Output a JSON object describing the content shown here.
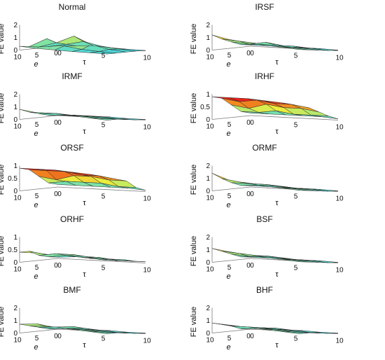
{
  "figure": {
    "z_axis_label": "FE value",
    "x_axis_label": "e",
    "y_axis_label": "τ"
  },
  "colors": {
    "axis": "#7a7a7a",
    "mesh_edge": "#2a2a2a",
    "low": "#3fd4e6",
    "high": "#e8241c"
  },
  "chart_data": [
    {
      "type": "surface",
      "title": "Normal",
      "zlim": [
        0,
        2
      ],
      "z_ticks": [
        "0",
        "1",
        "2"
      ],
      "e_ticks": [
        "10",
        "5",
        "0"
      ],
      "tau_ticks": [
        "0",
        "5",
        "10"
      ],
      "e_range": [
        0,
        10
      ],
      "tau_range": [
        0,
        10
      ],
      "z": [
        [
          0.3,
          0.2,
          0.15,
          0.1,
          0.08,
          0.05
        ],
        [
          0.2,
          0.9,
          0.4,
          0.2,
          0.1,
          0.05
        ],
        [
          0.1,
          0.5,
          1.1,
          0.5,
          0.2,
          0.05
        ],
        [
          0.05,
          0.3,
          0.6,
          0.3,
          0.15,
          0.05
        ],
        [
          0.05,
          0.1,
          0.2,
          0.1,
          0.05,
          0.02
        ]
      ]
    },
    {
      "type": "surface",
      "title": "IRSF",
      "zlim": [
        0,
        2
      ],
      "z_ticks": [
        "0",
        "1",
        "2"
      ],
      "e_ticks": [
        "10",
        "5",
        "0"
      ],
      "tau_ticks": [
        "0",
        "5",
        "10"
      ],
      "e_range": [
        0,
        10
      ],
      "tau_range": [
        0,
        10
      ],
      "z": [
        [
          1.2,
          0.9,
          0.7,
          0.6,
          0.5,
          0.4
        ],
        [
          0.8,
          0.7,
          0.6,
          0.5,
          0.4,
          0.3
        ],
        [
          0.5,
          0.4,
          0.6,
          0.4,
          0.3,
          0.2
        ],
        [
          0.2,
          0.3,
          0.3,
          0.3,
          0.2,
          0.1
        ],
        [
          0.1,
          0.1,
          0.1,
          0.1,
          0.1,
          0.05
        ]
      ]
    },
    {
      "type": "surface",
      "title": "IRMF",
      "zlim": [
        0,
        2
      ],
      "z_ticks": [
        "0",
        "1",
        "2"
      ],
      "e_ticks": [
        "10",
        "5",
        "0"
      ],
      "tau_ticks": [
        "0",
        "5",
        "10"
      ],
      "e_range": [
        0,
        10
      ],
      "tau_range": [
        0,
        10
      ],
      "z": [
        [
          0.8,
          0.6,
          0.5,
          0.5,
          0.4,
          0.3
        ],
        [
          0.5,
          0.5,
          0.4,
          0.4,
          0.3,
          0.3
        ],
        [
          0.3,
          0.4,
          0.3,
          0.3,
          0.2,
          0.2
        ],
        [
          0.1,
          0.2,
          0.2,
          0.2,
          0.1,
          0.1
        ],
        [
          0.05,
          0.1,
          0.1,
          0.1,
          0.05,
          0.05
        ]
      ]
    },
    {
      "type": "surface",
      "title": "IRHF",
      "zlim": [
        0,
        1
      ],
      "z_ticks": [
        "0",
        "0.5",
        "1"
      ],
      "e_ticks": [
        "10",
        "5",
        "0"
      ],
      "tau_ticks": [
        "0",
        "5",
        "10"
      ],
      "e_range": [
        0,
        10
      ],
      "tau_range": [
        0,
        10
      ],
      "z": [
        [
          0.9,
          0.9,
          0.9,
          0.85,
          0.8,
          0.7
        ],
        [
          0.8,
          0.7,
          0.8,
          0.7,
          0.7,
          0.6
        ],
        [
          0.5,
          0.4,
          0.6,
          0.5,
          0.5,
          0.4
        ],
        [
          0.2,
          0.2,
          0.3,
          0.2,
          0.2,
          0.2
        ],
        [
          0.1,
          0.1,
          0.1,
          0.1,
          0.1,
          0.05
        ]
      ]
    },
    {
      "type": "surface",
      "title": "ORSF",
      "zlim": [
        0,
        1
      ],
      "z_ticks": [
        "0",
        "0.5",
        "1"
      ],
      "e_ticks": [
        "10",
        "5",
        "0"
      ],
      "tau_ticks": [
        "0",
        "5",
        "10"
      ],
      "e_range": [
        0,
        10
      ],
      "tau_range": [
        0,
        10
      ],
      "z": [
        [
          0.9,
          0.9,
          0.9,
          0.85,
          0.8,
          0.7
        ],
        [
          0.8,
          0.8,
          0.8,
          0.7,
          0.7,
          0.6
        ],
        [
          0.5,
          0.4,
          0.6,
          0.6,
          0.5,
          0.5
        ],
        [
          0.2,
          0.3,
          0.3,
          0.3,
          0.2,
          0.2
        ],
        [
          0.1,
          0.1,
          0.1,
          0.1,
          0.1,
          0.05
        ]
      ]
    },
    {
      "type": "surface",
      "title": "ORMF",
      "zlim": [
        0,
        2
      ],
      "z_ticks": [
        "0",
        "1",
        "2"
      ],
      "e_ticks": [
        "10",
        "5",
        "0"
      ],
      "tau_ticks": [
        "0",
        "5",
        "10"
      ],
      "e_range": [
        0,
        10
      ],
      "tau_range": [
        0,
        10
      ],
      "z": [
        [
          1.4,
          0.9,
          0.7,
          0.6,
          0.5,
          0.4
        ],
        [
          0.9,
          0.7,
          0.6,
          0.5,
          0.4,
          0.3
        ],
        [
          0.5,
          0.5,
          0.5,
          0.4,
          0.3,
          0.2
        ],
        [
          0.2,
          0.3,
          0.3,
          0.2,
          0.2,
          0.1
        ],
        [
          0.1,
          0.1,
          0.1,
          0.1,
          0.1,
          0.05
        ]
      ]
    },
    {
      "type": "surface",
      "title": "ORHF",
      "zlim": [
        0,
        1
      ],
      "z_ticks": [
        "0",
        "0.5",
        "1"
      ],
      "e_ticks": [
        "10",
        "5",
        "0"
      ],
      "tau_ticks": [
        "0",
        "5",
        "10"
      ],
      "e_range": [
        0,
        10
      ],
      "tau_range": [
        0,
        10
      ],
      "z": [
        [
          0.4,
          0.4,
          0.35,
          0.35,
          0.3,
          0.3
        ],
        [
          0.4,
          0.3,
          0.3,
          0.3,
          0.3,
          0.2
        ],
        [
          0.2,
          0.3,
          0.3,
          0.2,
          0.2,
          0.2
        ],
        [
          0.1,
          0.2,
          0.2,
          0.1,
          0.1,
          0.1
        ],
        [
          0.05,
          0.1,
          0.1,
          0.05,
          0.05,
          0.05
        ]
      ]
    },
    {
      "type": "surface",
      "title": "BSF",
      "zlim": [
        0,
        2
      ],
      "z_ticks": [
        "0",
        "1",
        "2"
      ],
      "e_ticks": [
        "10",
        "5",
        "0"
      ],
      "tau_ticks": [
        "0",
        "5",
        "10"
      ],
      "e_range": [
        0,
        10
      ],
      "tau_range": [
        0,
        10
      ],
      "z": [
        [
          1.1,
          0.9,
          0.7,
          0.6,
          0.5,
          0.4
        ],
        [
          0.8,
          0.7,
          0.6,
          0.5,
          0.4,
          0.3
        ],
        [
          0.5,
          0.4,
          0.5,
          0.4,
          0.3,
          0.2
        ],
        [
          0.2,
          0.3,
          0.3,
          0.2,
          0.2,
          0.1
        ],
        [
          0.1,
          0.1,
          0.1,
          0.1,
          0.1,
          0.05
        ]
      ]
    },
    {
      "type": "surface",
      "title": "BMF",
      "zlim": [
        0,
        2
      ],
      "z_ticks": [
        "0",
        "1",
        "2"
      ],
      "e_ticks": [
        "10",
        "5",
        "0"
      ],
      "tau_ticks": [
        "0",
        "5",
        "10"
      ],
      "e_range": [
        0,
        10
      ],
      "tau_range": [
        0,
        10
      ],
      "z": [
        [
          0.7,
          0.8,
          0.6,
          0.5,
          0.4,
          0.3
        ],
        [
          0.5,
          0.5,
          0.5,
          0.4,
          0.3,
          0.3
        ],
        [
          0.3,
          0.4,
          0.5,
          0.3,
          0.2,
          0.2
        ],
        [
          0.1,
          0.2,
          0.3,
          0.2,
          0.1,
          0.1
        ],
        [
          0.05,
          0.1,
          0.1,
          0.1,
          0.05,
          0.05
        ]
      ]
    },
    {
      "type": "surface",
      "title": "BHF",
      "zlim": [
        0,
        2
      ],
      "z_ticks": [
        "0",
        "1",
        "2"
      ],
      "e_ticks": [
        "10",
        "5",
        "0"
      ],
      "tau_ticks": [
        "0",
        "5",
        "10"
      ],
      "e_range": [
        0,
        10
      ],
      "tau_range": [
        0,
        10
      ],
      "z": [
        [
          0.8,
          0.7,
          0.6,
          0.5,
          0.4,
          0.3
        ],
        [
          0.6,
          0.5,
          0.5,
          0.4,
          0.3,
          0.3
        ],
        [
          0.4,
          0.4,
          0.4,
          0.3,
          0.2,
          0.2
        ],
        [
          0.1,
          0.2,
          0.3,
          0.2,
          0.1,
          0.1
        ],
        [
          0.05,
          0.1,
          0.1,
          0.1,
          0.05,
          0.05
        ]
      ]
    }
  ]
}
